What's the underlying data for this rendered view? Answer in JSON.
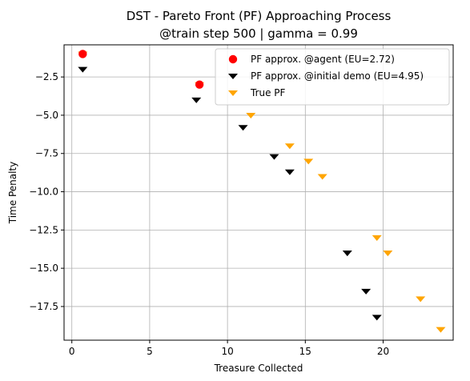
{
  "chart_data": {
    "type": "scatter",
    "title": "DST - Pareto Front (PF) Approaching Process",
    "subtitle": "@train step 500 | gamma = 0.99",
    "xlabel": "Treasure Collected",
    "ylabel": "Time Penalty",
    "xlim": [
      -0.5,
      24.5
    ],
    "ylim": [
      -19.7,
      -0.4
    ],
    "xticks": [
      0,
      5,
      10,
      15,
      20
    ],
    "yticks": [
      -2.5,
      -5.0,
      -7.5,
      -10.0,
      -12.5,
      -15.0,
      -17.5
    ],
    "xtick_labels": [
      "0",
      "5",
      "10",
      "15",
      "20"
    ],
    "ytick_labels": [
      "−2.5",
      "−5.0",
      "−7.5",
      "−10.0",
      "−12.5",
      "−15.0",
      "−17.5"
    ],
    "grid": true,
    "legend_position": "top-right",
    "series": [
      {
        "name": "True PF",
        "marker": "triangle-down",
        "color": "#ffa500",
        "x": [
          0.7,
          8.2,
          11.5,
          14.0,
          15.2,
          16.1,
          19.6,
          20.3,
          22.4,
          23.7
        ],
        "y": [
          -1,
          -3,
          -5,
          -7,
          -8,
          -9,
          -13,
          -14,
          -17,
          -19
        ]
      },
      {
        "name": "PF approx. @initial demo (EU=4.95)",
        "marker": "triangle-down",
        "color": "#000000",
        "x": [
          0.7,
          8.0,
          11.0,
          13.0,
          14.0,
          17.7,
          18.9,
          19.6
        ],
        "y": [
          -2,
          -4,
          -5.8,
          -7.7,
          -8.7,
          -14,
          -16.5,
          -18.2
        ]
      },
      {
        "name": "PF approx. @agent (EU=2.72)",
        "marker": "circle",
        "color": "#ff0000",
        "x": [
          0.7,
          8.2
        ],
        "y": [
          -1,
          -3
        ]
      }
    ],
    "legend_order": [
      2,
      1,
      0
    ]
  }
}
